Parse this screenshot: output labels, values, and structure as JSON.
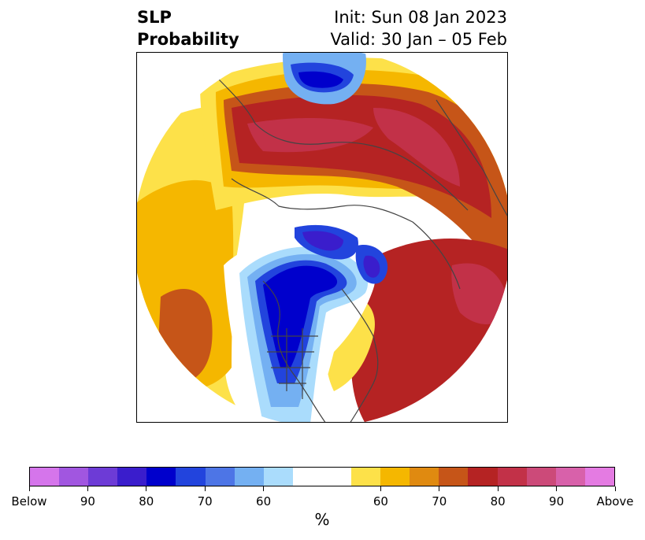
{
  "title": {
    "left_line1": "SLP",
    "left_line2": "Probability",
    "right_line1": "Init: Sun 08 Jan 2023",
    "right_line2": "Valid: 30 Jan – 05 Feb"
  },
  "colorbar": {
    "unit": "%",
    "colors": [
      "#d575eb",
      "#a156e0",
      "#6d3bd6",
      "#3a1dcc",
      "#0000cc",
      "#2244dd",
      "#4d75e6",
      "#74b0f2",
      "#aadcfc",
      "#ffffff",
      "#ffffff",
      "#fde149",
      "#f5b700",
      "#e08a10",
      "#c65518",
      "#b52323",
      "#c23148",
      "#cc4a79",
      "#d861aa",
      "#e47be2"
    ],
    "tick_labels": [
      "Below",
      "90",
      "80",
      "70",
      "60",
      "60",
      "70",
      "80",
      "90",
      "Above"
    ]
  },
  "map": {
    "projection": "north-polar-stereographic",
    "features": [
      "below-normal-low-north-america",
      "below-normal-low-siberia",
      "above-normal-high-europe",
      "above-normal-high-pacific",
      "above-normal-high-north-atlantic"
    ]
  }
}
